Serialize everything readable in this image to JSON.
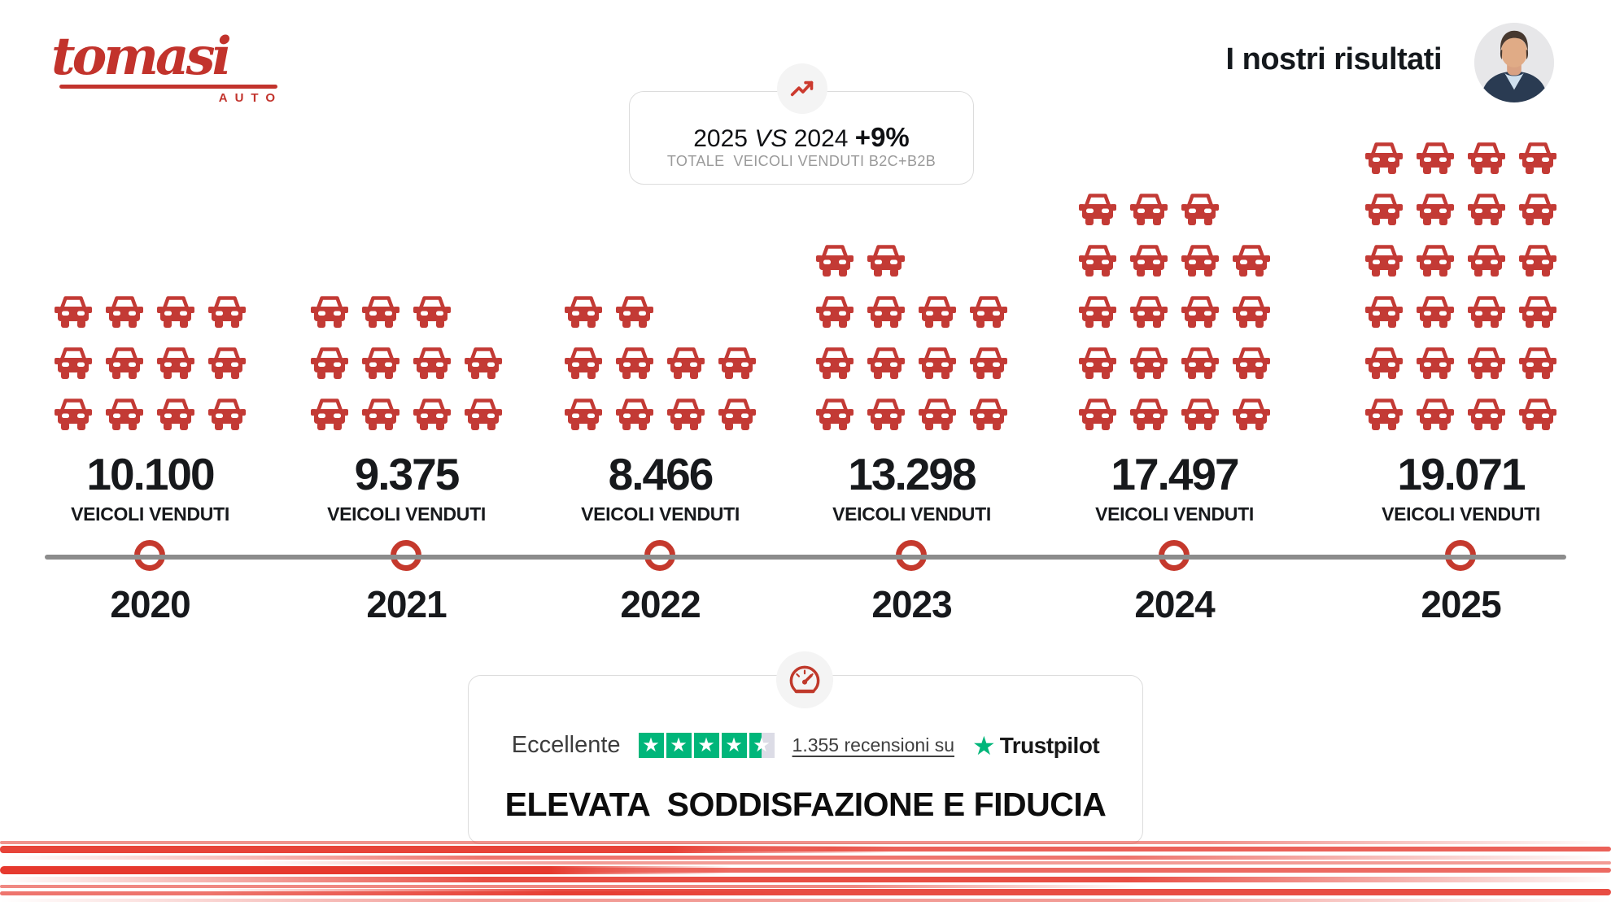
{
  "brand": {
    "logo_text": "tomasi",
    "logo_sub": "AUTO",
    "accent": "#C2332C"
  },
  "header": {
    "title": "I nostri risultati"
  },
  "kpi_badge": {
    "year_a": "2025",
    "vs": "VS",
    "year_b": "2024",
    "delta": "+9%",
    "subtitle": "TOTALE  VEICOLI VENDUTI B2C+B2B"
  },
  "chart_data": {
    "type": "bar",
    "variant": "pictogram-timeline",
    "unit_icon": "car",
    "icon_color": "#C33A35",
    "categories": [
      "2020",
      "2021",
      "2022",
      "2023",
      "2024",
      "2025"
    ],
    "values": [
      10100,
      9375,
      8466,
      13298,
      17497,
      19071
    ],
    "value_labels": [
      "10.100",
      "9.375",
      "8.466",
      "13.298",
      "17.497",
      "19.071"
    ],
    "value_sublabel": "VEICOLI VENDUTI",
    "icon_rows": [
      [
        4,
        4,
        4
      ],
      [
        3,
        4,
        4
      ],
      [
        2,
        4,
        4
      ],
      [
        2,
        4,
        4,
        4
      ],
      [
        3,
        4,
        4,
        4,
        4
      ],
      [
        4,
        4,
        4,
        4,
        4,
        4
      ]
    ],
    "icon_counts": [
      12,
      11,
      10,
      14,
      19,
      24
    ],
    "legend_position": "none",
    "grid": false
  },
  "trust_card": {
    "rating_word": "Eccellente",
    "stars": 4.5,
    "reviews_link": "1.355 recensioni su",
    "platform": "Trustpilot",
    "headline": "ELEVATA  SODDISFAZIONE E FIDUCIA"
  },
  "colors": {
    "car_red": "#C33A35",
    "logo_red": "#C2332C",
    "marker_red": "#C5392D",
    "timeline_gray": "#8C8C8C",
    "subtitle_gray": "#9A9A9A",
    "trustpilot_green": "#00B67A",
    "star_box_gray": "#DCDCE6",
    "speedline_red": "#E6392E"
  }
}
